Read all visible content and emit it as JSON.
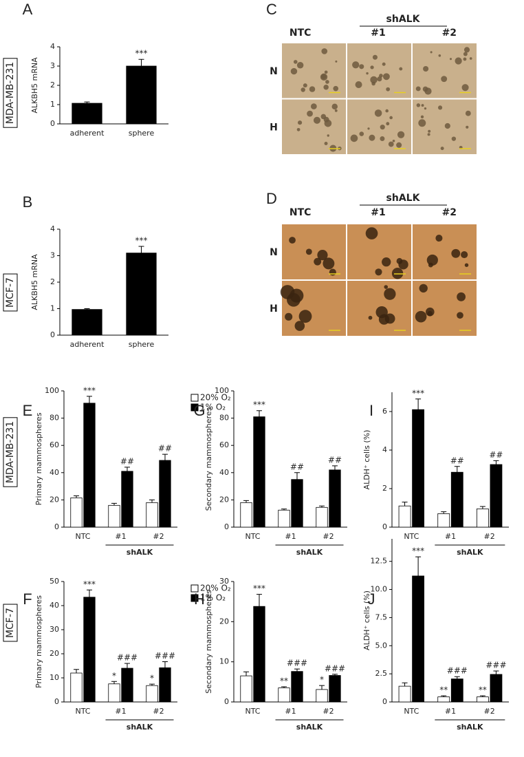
{
  "side_labels": [
    "MDA-MB-231",
    "MCF-7",
    "MDA-MB-231",
    "MCF-7"
  ],
  "micrographs": [
    {
      "panel": "C",
      "group_label": "shALK",
      "columns": [
        "NTC",
        "#1",
        "#2"
      ],
      "rows": [
        "N",
        "H"
      ]
    },
    {
      "panel": "D",
      "group_label": "shALK",
      "columns": [
        "NTC",
        "#1",
        "#2"
      ],
      "rows": [
        "N",
        "H"
      ]
    }
  ],
  "chart_data": [
    {
      "type": "bar",
      "panel": "A",
      "y_label": "ALKBH5 mRNA",
      "categories": [
        "adherent",
        "sphere"
      ],
      "values": [
        1.07,
        3.0
      ],
      "errors": [
        0.07,
        0.35
      ],
      "annotations": [
        null,
        "***"
      ],
      "color": "#000000",
      "ylim": [
        0,
        4
      ],
      "yticks": [
        0,
        1,
        2,
        3,
        4
      ]
    },
    {
      "type": "bar",
      "panel": "B",
      "y_label": "ALKBH5 mRNA",
      "categories": [
        "adherent",
        "sphere"
      ],
      "values": [
        0.97,
        3.1
      ],
      "errors": [
        0.03,
        0.25
      ],
      "annotations": [
        null,
        "***"
      ],
      "color": "#000000",
      "ylim": [
        0,
        4
      ],
      "yticks": [
        0,
        1,
        2,
        3,
        4
      ]
    },
    {
      "type": "bar",
      "panel": "E",
      "y_label": "Primary mammospheres",
      "categories": [
        "NTC",
        "#1",
        "#2"
      ],
      "group_label": "shALK",
      "legend": "upper right",
      "series": [
        {
          "name": "20% O₂",
          "color": "#ffffff",
          "values": [
            21.5,
            16,
            18
          ],
          "errors": [
            1.5,
            1.5,
            2
          ]
        },
        {
          "name": "1% O₂",
          "color": "#000000",
          "values": [
            91,
            41,
            49
          ],
          "errors": [
            5,
            3,
            4.5
          ],
          "annotations": [
            "***",
            "##",
            "##"
          ]
        }
      ],
      "ylim": [
        0,
        100
      ],
      "yticks": [
        0,
        20,
        40,
        60,
        80,
        100
      ]
    },
    {
      "type": "bar",
      "panel": "G",
      "y_label": "Secondary mammospheres",
      "categories": [
        "NTC",
        "#1",
        "#2"
      ],
      "group_label": "shALK",
      "series": [
        {
          "color": "#ffffff",
          "values": [
            18,
            12.5,
            14.5
          ],
          "errors": [
            1.5,
            0.8,
            1
          ]
        },
        {
          "color": "#000000",
          "values": [
            81,
            35,
            42
          ],
          "errors": [
            4.5,
            5,
            3
          ],
          "annotations": [
            "***",
            "##",
            "##"
          ]
        }
      ],
      "ylim": [
        0,
        100
      ],
      "yticks": [
        0,
        20,
        40,
        60,
        80,
        100
      ]
    },
    {
      "type": "bar",
      "panel": "I",
      "y_label": "ALDH⁺ cells (%)",
      "categories": [
        "NTC",
        "#1",
        "#2"
      ],
      "group_label": "shALK",
      "series": [
        {
          "color": "#ffffff",
          "values": [
            1.1,
            0.7,
            0.95
          ],
          "errors": [
            0.2,
            0.1,
            0.12
          ]
        },
        {
          "color": "#000000",
          "values": [
            6.1,
            2.85,
            3.25
          ],
          "errors": [
            0.55,
            0.3,
            0.2
          ],
          "annotations": [
            "***",
            "##",
            "##"
          ]
        }
      ],
      "ylim": [
        0,
        7
      ],
      "yticks": [
        0,
        2,
        4,
        6
      ]
    },
    {
      "type": "bar",
      "panel": "F",
      "y_label": "Primary mammospheres",
      "categories": [
        "NTC",
        "#1",
        "#2"
      ],
      "group_label": "shALK",
      "legend": "upper right",
      "series": [
        {
          "name": "20% O₂",
          "color": "#ffffff",
          "values": [
            12,
            7.5,
            6.8
          ],
          "errors": [
            1.5,
            1,
            0.6
          ],
          "annotations": [
            null,
            "*",
            "*"
          ]
        },
        {
          "name": "1% O₂",
          "color": "#000000",
          "values": [
            43.5,
            14,
            14.2
          ],
          "errors": [
            3,
            2,
            2.5
          ],
          "annotations": [
            "***",
            "###",
            "###"
          ]
        }
      ],
      "ylim": [
        0,
        50
      ],
      "yticks": [
        0,
        10,
        20,
        30,
        40,
        50
      ]
    },
    {
      "type": "bar",
      "panel": "H",
      "y_label": "Secondary mammospheres",
      "categories": [
        "NTC",
        "#1",
        "#2"
      ],
      "group_label": "shALK",
      "series": [
        {
          "color": "#ffffff",
          "values": [
            6.5,
            3.5,
            3.1
          ],
          "errors": [
            1,
            0.3,
            1
          ],
          "annotations": [
            null,
            "**",
            "*"
          ]
        },
        {
          "color": "#000000",
          "values": [
            23.8,
            7.6,
            6.6
          ],
          "errors": [
            3,
            0.6,
            0.3
          ],
          "annotations": [
            "***",
            "###",
            "###"
          ]
        }
      ],
      "ylim": [
        0,
        30
      ],
      "yticks": [
        0,
        10,
        20,
        30
      ]
    },
    {
      "type": "bar",
      "panel": "J",
      "y_label": "ALDH⁺ cells (%)",
      "categories": [
        "NTC",
        "#1",
        "#2"
      ],
      "group_label": "shALK",
      "series": [
        {
          "color": "#ffffff",
          "values": [
            1.4,
            0.45,
            0.45
          ],
          "errors": [
            0.3,
            0.1,
            0.1
          ],
          "annotations": [
            null,
            "**",
            "**"
          ]
        },
        {
          "color": "#000000",
          "values": [
            11.2,
            2.05,
            2.45
          ],
          "errors": [
            1.7,
            0.2,
            0.3
          ],
          "annotations": [
            "***",
            "###",
            "###"
          ]
        }
      ],
      "ylim": [
        0,
        14.5
      ],
      "yticks": [
        0,
        2.5,
        {
          "value": 5,
          "label": "5.0"
        },
        7.5,
        {
          "value": 10,
          "label": "10.0"
        },
        12.5
      ]
    }
  ]
}
